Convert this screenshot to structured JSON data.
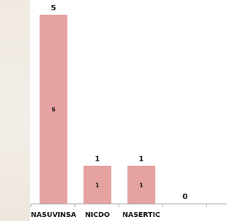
{
  "chart_data": {
    "type": "bar",
    "categories": [
      "NASUVINSA",
      "NICDO",
      "NASERTIC",
      ""
    ],
    "values": [
      5,
      1,
      1,
      0
    ],
    "title": "",
    "xlabel": "",
    "ylabel": "",
    "ylim": [
      0,
      5.4
    ],
    "grid": false,
    "legend": "none",
    "colors": {
      "bar": "#e6a1a1",
      "bar_stroke": "#d98e8e",
      "axis": "#a6a6a6"
    }
  }
}
